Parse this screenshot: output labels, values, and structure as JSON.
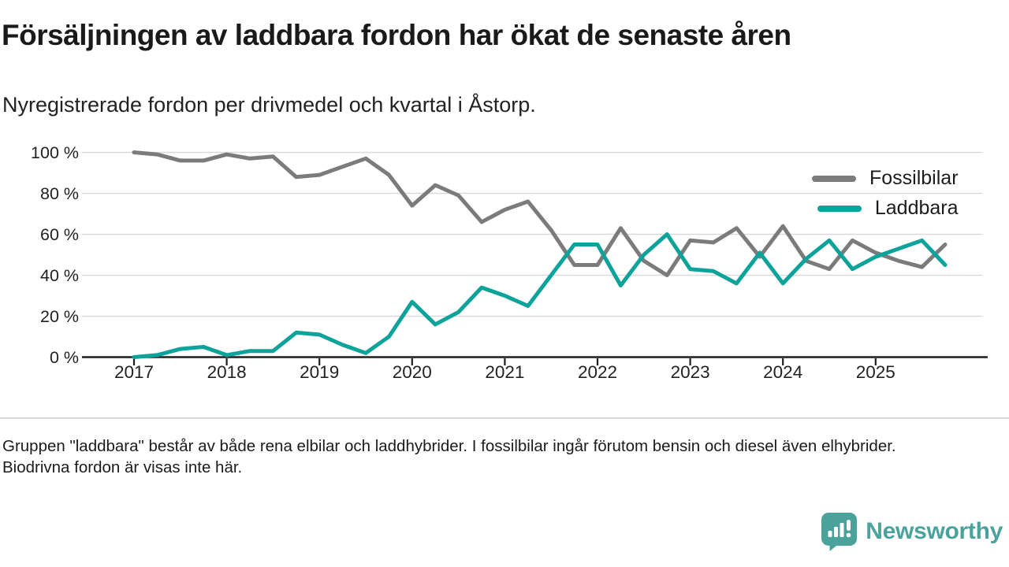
{
  "title": "Försäljningen av laddbara fordon har ökat de senaste åren",
  "subtitle": "Nyregistrerade fordon per drivmedel och kvartal i Åstorp.",
  "footnote": "Gruppen \"laddbara\" består av både rena elbilar och laddhybrider. I fossilbilar ingår förutom bensin och diesel även elhybrider. Biodrivna fordon är visas inte här.",
  "logo": {
    "text": "Newsworthy",
    "color": "#4ba29b"
  },
  "colors": {
    "fossil": "#7b7b7b",
    "laddbara": "#0da29a",
    "grid": "#d9d9d9",
    "axis": "#1f1f1f",
    "tick_text": "#222222"
  },
  "chart_data": {
    "type": "line",
    "title": "",
    "xlabel": "",
    "ylabel": "",
    "ylim": [
      0,
      100
    ],
    "grid": "horizontal",
    "legend_position": "top-right",
    "yticks": [
      0,
      20,
      40,
      60,
      80,
      100
    ],
    "ytick_labels": [
      "0 %",
      "20 %",
      "40 %",
      "60 %",
      "80 %",
      "100 %"
    ],
    "year_labels": [
      "2017",
      "2018",
      "2019",
      "2020",
      "2021",
      "2022",
      "2023",
      "2024",
      "2025"
    ],
    "x": [
      "2017-K1",
      "2017-K2",
      "2017-K3",
      "2017-K4",
      "2018-K1",
      "2018-K2",
      "2018-K3",
      "2018-K4",
      "2019-K1",
      "2019-K2",
      "2019-K3",
      "2019-K4",
      "2020-K1",
      "2020-K2",
      "2020-K3",
      "2020-K4",
      "2021-K1",
      "2021-K2",
      "2021-K3",
      "2021-K4",
      "2022-K1",
      "2022-K2",
      "2022-K3",
      "2022-K4",
      "2023-K1",
      "2023-K2",
      "2023-K3",
      "2023-K4",
      "2024-K1",
      "2024-K2",
      "2024-K3",
      "2024-K4",
      "2025-K1",
      "2025-K2",
      "2025-K3",
      "2025-K4"
    ],
    "series": [
      {
        "name": "Fossilbilar",
        "color": "#7b7b7b",
        "values": [
          100,
          99,
          96,
          96,
          99,
          97,
          98,
          88,
          89,
          93,
          97,
          89,
          74,
          84,
          79,
          66,
          72,
          76,
          62,
          45,
          45,
          63,
          47,
          40,
          57,
          56,
          63,
          49,
          64,
          47,
          43,
          57,
          51,
          47,
          44,
          55
        ]
      },
      {
        "name": "Laddbara",
        "color": "#0da29a",
        "values": [
          0,
          1,
          4,
          5,
          1,
          3,
          3,
          12,
          11,
          6,
          2,
          10,
          27,
          16,
          22,
          34,
          30,
          25,
          40,
          55,
          55,
          35,
          50,
          60,
          43,
          42,
          36,
          51,
          36,
          48,
          57,
          43,
          49,
          53,
          57,
          45
        ]
      }
    ]
  }
}
